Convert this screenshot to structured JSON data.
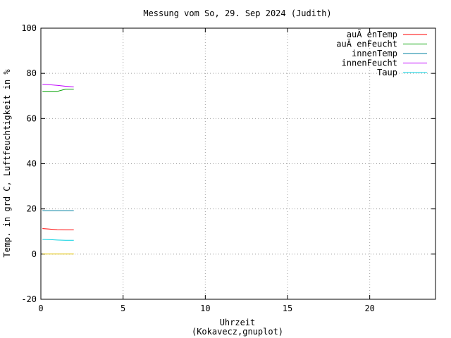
{
  "chart_data": {
    "type": "line",
    "title": "Messung vom So, 29. Sep 2024 (Judith)",
    "xlabel": "Uhrzeit",
    "xlabel2": "(Kokavecz,gnuplot)",
    "ylabel": "Temp. in grd C, Luftfeuchtigkeit in %",
    "xlim": [
      0,
      24
    ],
    "ylim": [
      -20,
      100
    ],
    "xticks": [
      0,
      5,
      10,
      15,
      20
    ],
    "yticks": [
      -20,
      0,
      20,
      40,
      60,
      80,
      100
    ],
    "grid": true,
    "legend_position": "top-right",
    "series": [
      {
        "name": "auÃ enTemp",
        "color": "#ff0000",
        "x": [
          0.1,
          0.5,
          1.0,
          1.5,
          2.0
        ],
        "y": [
          11.3,
          11.1,
          10.8,
          10.7,
          10.7
        ]
      },
      {
        "name": "auÃ enFeucht",
        "color": "#00a000",
        "x": [
          0.1,
          0.5,
          1.0,
          1.5,
          2.0
        ],
        "y": [
          72.0,
          72.0,
          72.0,
          73.0,
          73.0
        ]
      },
      {
        "name": "innenTemp",
        "color": "#0080a0",
        "x": [
          0.1,
          0.5,
          1.0,
          1.5,
          2.0
        ],
        "y": [
          19.2,
          19.2,
          19.2,
          19.2,
          19.2
        ]
      },
      {
        "name": "innenFeucht",
        "color": "#c000ff",
        "x": [
          0.1,
          0.5,
          1.0,
          1.5,
          2.0
        ],
        "y": [
          75.2,
          75.0,
          74.7,
          74.3,
          74.0
        ]
      },
      {
        "name": "Taup",
        "color": "#00d0e0",
        "x": [
          0.1,
          0.5,
          1.0,
          1.5,
          2.0
        ],
        "y": [
          6.5,
          6.4,
          6.2,
          6.1,
          6.1
        ]
      },
      {
        "name": "",
        "color": "#e0c000",
        "x": [
          0.1,
          2.0
        ],
        "y": [
          0,
          0
        ]
      }
    ]
  }
}
